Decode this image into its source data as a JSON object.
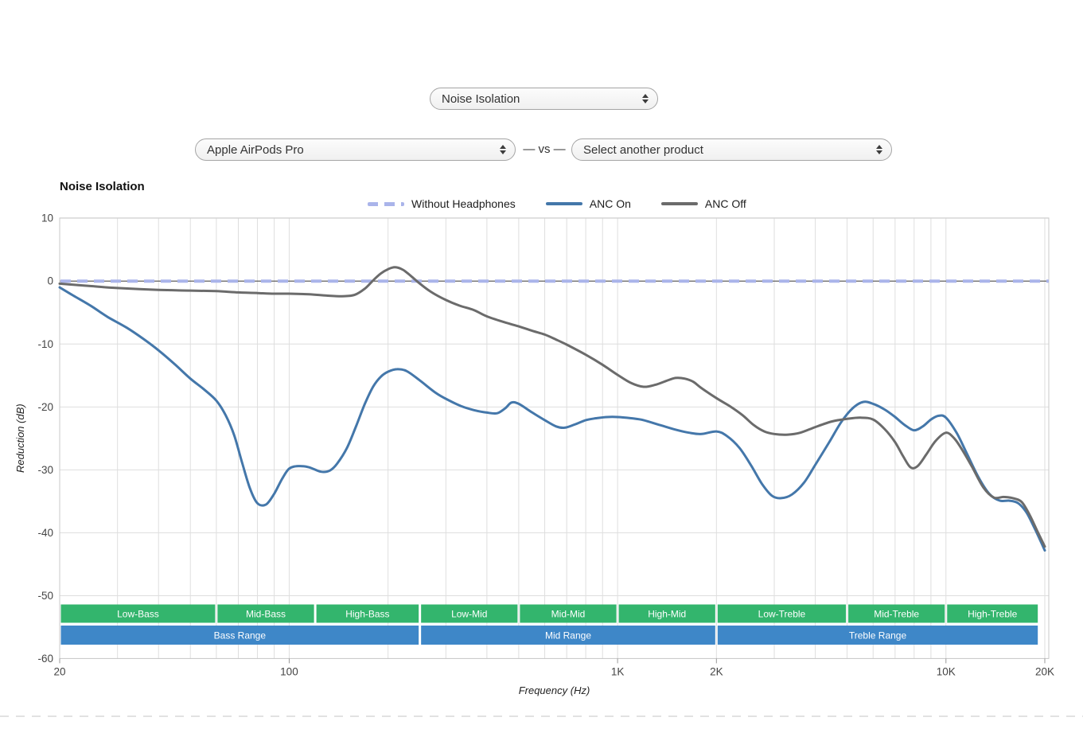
{
  "controls": {
    "metric_select": {
      "value": "Noise Isolation"
    },
    "product_select": {
      "value": "Apple AirPods Pro"
    },
    "vs_label": "— vs —",
    "compare_select": {
      "value": "Select another product"
    }
  },
  "chart_data": {
    "type": "line",
    "title": "Noise Isolation",
    "xlabel": "Frequency (Hz)",
    "ylabel": "Reduction (dB)",
    "x_scale": "log",
    "xlim": [
      20,
      20000
    ],
    "ylim": [
      -60,
      10
    ],
    "grid": true,
    "legend_position": "top",
    "y_ticks": [
      {
        "value": 10,
        "label": "10"
      },
      {
        "value": 0,
        "label": "0"
      },
      {
        "value": -10,
        "label": "-10"
      },
      {
        "value": -20,
        "label": "-20"
      },
      {
        "value": -30,
        "label": "-30"
      },
      {
        "value": -40,
        "label": "-40"
      },
      {
        "value": -50,
        "label": "-50"
      },
      {
        "value": -60,
        "label": "-60"
      }
    ],
    "x_ticks": [
      {
        "value": 20,
        "label": "20"
      },
      {
        "value": 100,
        "label": "100"
      },
      {
        "value": 1000,
        "label": "1K"
      },
      {
        "value": 2000,
        "label": "2K"
      },
      {
        "value": 10000,
        "label": "10K"
      },
      {
        "value": 20000,
        "label": "20K"
      }
    ],
    "x_gridlines": [
      20,
      30,
      40,
      50,
      60,
      70,
      80,
      90,
      100,
      200,
      300,
      400,
      500,
      600,
      700,
      800,
      900,
      1000,
      2000,
      3000,
      4000,
      5000,
      6000,
      7000,
      8000,
      9000,
      10000,
      20000
    ],
    "zero_line_color": "#4d4d4d",
    "grid_color": "#dedede",
    "border_color": "#c9c9c9",
    "series": [
      {
        "name": "Without Headphones",
        "color": "#aab4ea",
        "dash": true,
        "full_width": true,
        "points": [
          [
            20,
            0
          ],
          [
            20000,
            0
          ]
        ]
      },
      {
        "name": "ANC On",
        "color": "#4477aa",
        "dash": false,
        "points": [
          [
            20,
            -1
          ],
          [
            22,
            -2.3
          ],
          [
            25,
            -4
          ],
          [
            28,
            -5.7
          ],
          [
            32,
            -7.4
          ],
          [
            36,
            -9.2
          ],
          [
            40,
            -11
          ],
          [
            45,
            -13.3
          ],
          [
            50,
            -15.5
          ],
          [
            55,
            -17.2
          ],
          [
            60,
            -19
          ],
          [
            64,
            -21.3
          ],
          [
            68,
            -24.5
          ],
          [
            72,
            -29
          ],
          [
            76,
            -33
          ],
          [
            80,
            -35.3
          ],
          [
            85,
            -35.5
          ],
          [
            90,
            -33.8
          ],
          [
            95,
            -31.5
          ],
          [
            100,
            -29.8
          ],
          [
            107,
            -29.4
          ],
          [
            115,
            -29.6
          ],
          [
            125,
            -30.3
          ],
          [
            133,
            -30.1
          ],
          [
            140,
            -29
          ],
          [
            150,
            -26.5
          ],
          [
            160,
            -23
          ],
          [
            170,
            -19.5
          ],
          [
            180,
            -16.8
          ],
          [
            190,
            -15.2
          ],
          [
            200,
            -14.4
          ],
          [
            213,
            -14
          ],
          [
            228,
            -14.3
          ],
          [
            250,
            -15.8
          ],
          [
            280,
            -17.8
          ],
          [
            305,
            -18.9
          ],
          [
            335,
            -19.9
          ],
          [
            365,
            -20.5
          ],
          [
            400,
            -20.9
          ],
          [
            430,
            -21
          ],
          [
            455,
            -20.2
          ],
          [
            475,
            -19.3
          ],
          [
            500,
            -19.5
          ],
          [
            550,
            -20.9
          ],
          [
            600,
            -22.1
          ],
          [
            650,
            -23.1
          ],
          [
            690,
            -23.3
          ],
          [
            740,
            -22.8
          ],
          [
            800,
            -22.1
          ],
          [
            860,
            -21.8
          ],
          [
            930,
            -21.6
          ],
          [
            1000,
            -21.6
          ],
          [
            1100,
            -21.8
          ],
          [
            1200,
            -22.1
          ],
          [
            1350,
            -22.9
          ],
          [
            1500,
            -23.6
          ],
          [
            1650,
            -24.1
          ],
          [
            1800,
            -24.3
          ],
          [
            2000,
            -23.9
          ],
          [
            2150,
            -24.6
          ],
          [
            2350,
            -26.5
          ],
          [
            2550,
            -29.3
          ],
          [
            2750,
            -32.2
          ],
          [
            2950,
            -34.1
          ],
          [
            3150,
            -34.5
          ],
          [
            3400,
            -33.9
          ],
          [
            3700,
            -32
          ],
          [
            4000,
            -29.2
          ],
          [
            4400,
            -25.7
          ],
          [
            4800,
            -22.4
          ],
          [
            5200,
            -20.2
          ],
          [
            5600,
            -19.2
          ],
          [
            6000,
            -19.5
          ],
          [
            6500,
            -20.4
          ],
          [
            7000,
            -21.6
          ],
          [
            7500,
            -22.9
          ],
          [
            8000,
            -23.7
          ],
          [
            8500,
            -23.1
          ],
          [
            9000,
            -22
          ],
          [
            9500,
            -21.4
          ],
          [
            10000,
            -21.7
          ],
          [
            10800,
            -24.2
          ],
          [
            11600,
            -27.5
          ],
          [
            12600,
            -31.3
          ],
          [
            13600,
            -33.9
          ],
          [
            14600,
            -34.9
          ],
          [
            15600,
            -34.9
          ],
          [
            16600,
            -35.3
          ],
          [
            17600,
            -36.8
          ],
          [
            18700,
            -39.5
          ],
          [
            20000,
            -42.8
          ]
        ]
      },
      {
        "name": "ANC Off",
        "color": "#6b6b6b",
        "dash": false,
        "points": [
          [
            20,
            -0.4
          ],
          [
            25,
            -0.8
          ],
          [
            30,
            -1.1
          ],
          [
            40,
            -1.4
          ],
          [
            50,
            -1.5
          ],
          [
            60,
            -1.6
          ],
          [
            70,
            -1.8
          ],
          [
            80,
            -1.9
          ],
          [
            90,
            -2
          ],
          [
            100,
            -2
          ],
          [
            115,
            -2.1
          ],
          [
            130,
            -2.3
          ],
          [
            145,
            -2.4
          ],
          [
            158,
            -2.2
          ],
          [
            170,
            -1.2
          ],
          [
            180,
            0.1
          ],
          [
            190,
            1.2
          ],
          [
            200,
            1.9
          ],
          [
            210,
            2.2
          ],
          [
            222,
            1.8
          ],
          [
            235,
            0.8
          ],
          [
            250,
            -0.4
          ],
          [
            270,
            -1.7
          ],
          [
            300,
            -3
          ],
          [
            330,
            -3.9
          ],
          [
            365,
            -4.6
          ],
          [
            400,
            -5.6
          ],
          [
            450,
            -6.5
          ],
          [
            500,
            -7.2
          ],
          [
            550,
            -7.9
          ],
          [
            600,
            -8.5
          ],
          [
            650,
            -9.3
          ],
          [
            700,
            -10.1
          ],
          [
            800,
            -11.7
          ],
          [
            900,
            -13.3
          ],
          [
            1000,
            -14.9
          ],
          [
            1100,
            -16.2
          ],
          [
            1200,
            -16.8
          ],
          [
            1300,
            -16.5
          ],
          [
            1400,
            -15.9
          ],
          [
            1500,
            -15.4
          ],
          [
            1600,
            -15.5
          ],
          [
            1700,
            -16
          ],
          [
            1800,
            -17
          ],
          [
            2000,
            -18.6
          ],
          [
            2200,
            -19.9
          ],
          [
            2400,
            -21.3
          ],
          [
            2600,
            -22.9
          ],
          [
            2800,
            -23.9
          ],
          [
            3000,
            -24.3
          ],
          [
            3300,
            -24.4
          ],
          [
            3600,
            -24.1
          ],
          [
            4000,
            -23.2
          ],
          [
            4500,
            -22.3
          ],
          [
            5000,
            -21.9
          ],
          [
            5500,
            -21.7
          ],
          [
            6000,
            -22
          ],
          [
            6500,
            -23.5
          ],
          [
            7000,
            -25.6
          ],
          [
            7400,
            -27.8
          ],
          [
            7800,
            -29.6
          ],
          [
            8200,
            -29.4
          ],
          [
            8700,
            -27.6
          ],
          [
            9300,
            -25.4
          ],
          [
            10000,
            -24.1
          ],
          [
            10600,
            -25
          ],
          [
            11200,
            -26.8
          ],
          [
            12000,
            -29.5
          ],
          [
            13000,
            -32.8
          ],
          [
            14000,
            -34.4
          ],
          [
            15000,
            -34.3
          ],
          [
            16000,
            -34.5
          ],
          [
            17000,
            -35.1
          ],
          [
            18000,
            -37.2
          ],
          [
            19000,
            -39.8
          ],
          [
            20000,
            -42.2
          ]
        ]
      }
    ],
    "range_bands": {
      "sub_color": "#33b56d",
      "main_color": "#3e87c8",
      "sub": [
        {
          "label": "Low-Bass",
          "f1": 20,
          "f2": 60
        },
        {
          "label": "Mid-Bass",
          "f1": 60,
          "f2": 120
        },
        {
          "label": "High-Bass",
          "f1": 120,
          "f2": 250
        },
        {
          "label": "Low-Mid",
          "f1": 250,
          "f2": 500
        },
        {
          "label": "Mid-Mid",
          "f1": 500,
          "f2": 1000
        },
        {
          "label": "High-Mid",
          "f1": 1000,
          "f2": 2000
        },
        {
          "label": "Low-Treble",
          "f1": 2000,
          "f2": 5000
        },
        {
          "label": "Mid-Treble",
          "f1": 5000,
          "f2": 10000
        },
        {
          "label": "High-Treble",
          "f1": 10000,
          "f2": 19200
        }
      ],
      "main": [
        {
          "label": "Bass Range",
          "f1": 20,
          "f2": 250
        },
        {
          "label": "Mid Range",
          "f1": 250,
          "f2": 2000
        },
        {
          "label": "Treble Range",
          "f1": 2000,
          "f2": 19200
        }
      ]
    }
  }
}
